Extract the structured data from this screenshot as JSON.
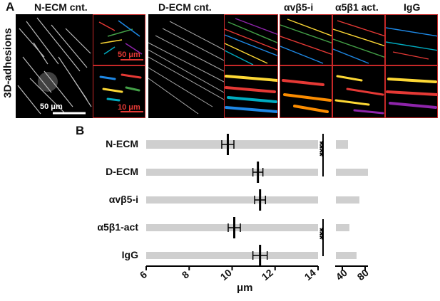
{
  "panel_a": {
    "letter": "A",
    "side_label": "3D-adhesions",
    "headers": [
      "N-ECM cnt.",
      "D-ECM cnt.",
      "αvβ5-i",
      "α5β1 act.",
      "IgG"
    ],
    "scalebars": [
      "50 μm",
      "50 μm",
      "10 μm"
    ]
  },
  "panel_b": {
    "letter": "B"
  },
  "chart_data": {
    "type": "scatter",
    "categories": [
      "N-ECM",
      "D-ECM",
      "αvβ5-i",
      "α5β1-act",
      "IgG"
    ],
    "means": [
      9.8,
      11.2,
      11.3,
      10.1,
      11.3
    ],
    "sem": [
      0.15,
      0.1,
      0.12,
      0.15,
      0.2
    ],
    "xlabel": "μm",
    "xlim": [
      6,
      14
    ],
    "xticks": [
      "6",
      "8",
      "10",
      "12",
      "14"
    ],
    "xticks_break": [
      "40",
      "80"
    ],
    "break_range": [
      14,
      80
    ],
    "significance": [
      {
        "between": [
          "N-ECM",
          "D-ECM"
        ],
        "label": "****"
      },
      {
        "between": [
          "α5β1-act",
          "IgG"
        ],
        "label": "***"
      }
    ],
    "colors": {
      "points": "#cfcfcf",
      "mean": "#000000"
    }
  }
}
